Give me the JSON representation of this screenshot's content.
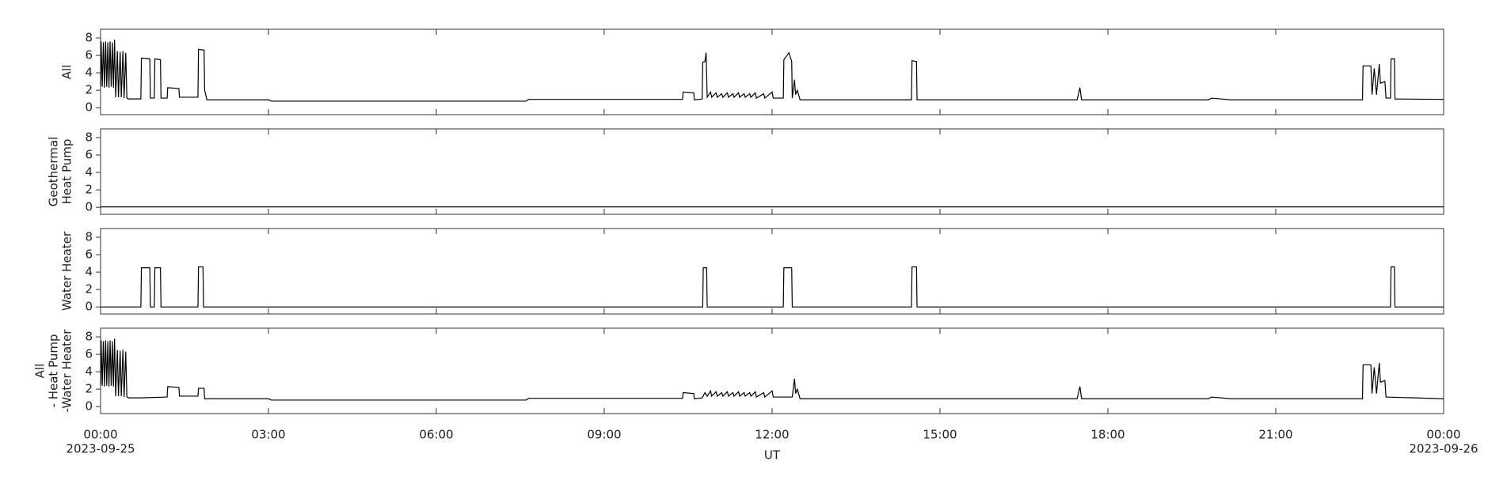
{
  "chart_data": [
    {
      "type": "line",
      "ylabel": [
        "All"
      ],
      "color": "#000000",
      "xlim": [
        0,
        24
      ],
      "ylim": [
        -0.8,
        9
      ],
      "yticks": [
        0,
        2,
        4,
        6,
        8
      ],
      "x": [
        0,
        0.01,
        0.03,
        0.05,
        0.07,
        0.09,
        0.11,
        0.13,
        0.15,
        0.17,
        0.19,
        0.21,
        0.23,
        0.25,
        0.27,
        0.3,
        0.32,
        0.35,
        0.37,
        0.4,
        0.42,
        0.45,
        0.47,
        0.5,
        0.72,
        0.73,
        0.88,
        0.89,
        0.96,
        0.97,
        1.07,
        1.08,
        1.19,
        1.2,
        1.4,
        1.41,
        1.74,
        1.75,
        1.85,
        1.86,
        1.9,
        3.0,
        3.05,
        7.6,
        7.65,
        10.4,
        10.41,
        10.6,
        10.61,
        10.75,
        10.76,
        10.8,
        10.82,
        10.84,
        10.9,
        10.92,
        11.0,
        11.02,
        11.1,
        11.12,
        11.2,
        11.22,
        11.3,
        11.32,
        11.4,
        11.42,
        11.5,
        11.52,
        11.6,
        11.62,
        11.7,
        11.72,
        11.85,
        11.87,
        12.0,
        12.02,
        12.2,
        12.21,
        12.3,
        12.35,
        12.36,
        12.4,
        12.42,
        12.45,
        12.5,
        14.49,
        14.5,
        14.58,
        14.59,
        17.45,
        17.5,
        17.53,
        19.8,
        19.85,
        20.2,
        22.55,
        22.56,
        22.7,
        22.72,
        22.76,
        22.8,
        22.85,
        22.87,
        22.95,
        22.97,
        23.05,
        23.06,
        23.12,
        23.13,
        24
      ],
      "values": [
        2.5,
        7.6,
        2.4,
        7.5,
        2.3,
        7.6,
        2.4,
        7.5,
        2.3,
        7.6,
        2.4,
        7.5,
        2.3,
        7.8,
        1.2,
        6.5,
        1.2,
        6.4,
        1.2,
        6.5,
        1.1,
        6.3,
        1.1,
        1.0,
        1.0,
        5.7,
        5.6,
        1.1,
        1.1,
        5.6,
        5.5,
        1.1,
        1.1,
        2.3,
        2.2,
        1.2,
        1.2,
        6.7,
        6.6,
        2.0,
        0.9,
        0.9,
        0.75,
        0.75,
        0.95,
        0.95,
        1.8,
        1.7,
        0.9,
        1.0,
        5.2,
        5.3,
        6.3,
        1.2,
        1.8,
        1.2,
        1.7,
        1.2,
        1.6,
        1.2,
        1.7,
        1.2,
        1.6,
        1.2,
        1.7,
        1.2,
        1.6,
        1.2,
        1.6,
        1.2,
        1.7,
        1.1,
        1.6,
        1.1,
        1.8,
        1.1,
        1.1,
        5.5,
        6.3,
        5.3,
        1.1,
        3.2,
        1.5,
        2.0,
        0.9,
        0.9,
        5.4,
        5.3,
        0.9,
        0.9,
        2.3,
        0.9,
        0.9,
        1.1,
        0.9,
        0.9,
        4.8,
        4.8,
        1.5,
        4.5,
        1.5,
        5.0,
        2.8,
        3.0,
        1.1,
        1.1,
        5.6,
        5.6,
        1.0,
        0.95
      ]
    },
    {
      "type": "line",
      "ylabel": [
        "Geothermal",
        "Heat Pump"
      ],
      "color": "#000000",
      "xlim": [
        0,
        24
      ],
      "ylim": [
        -0.8,
        9
      ],
      "yticks": [
        0,
        2,
        4,
        6,
        8
      ],
      "x": [
        0,
        24
      ],
      "values": [
        0.05,
        0.05
      ]
    },
    {
      "type": "line",
      "ylabel": [
        "Water Heater"
      ],
      "color": "#000000",
      "xlim": [
        0,
        24
      ],
      "ylim": [
        -0.8,
        9
      ],
      "yticks": [
        0,
        2,
        4,
        6,
        8
      ],
      "x": [
        0,
        0.72,
        0.73,
        0.88,
        0.89,
        0.96,
        0.97,
        1.07,
        1.08,
        1.74,
        1.75,
        1.83,
        1.84,
        10.76,
        10.77,
        10.83,
        10.84,
        12.2,
        12.21,
        12.35,
        12.36,
        14.49,
        14.5,
        14.58,
        14.59,
        23.05,
        23.06,
        23.12,
        23.13,
        24
      ],
      "values": [
        0,
        0,
        4.5,
        4.5,
        0,
        0,
        4.5,
        4.5,
        0,
        0,
        4.6,
        4.6,
        0,
        0,
        4.5,
        4.5,
        0,
        0,
        4.5,
        4.5,
        0,
        0,
        4.6,
        4.6,
        0,
        0,
        4.6,
        4.6,
        0,
        0
      ]
    },
    {
      "type": "line",
      "ylabel": [
        "All",
        "- Heat Pump",
        "-Water Heater"
      ],
      "color": "#000000",
      "xlim": [
        0,
        24
      ],
      "ylim": [
        -0.8,
        9
      ],
      "yticks": [
        0,
        2,
        4,
        6,
        8
      ],
      "xlabel": "UT",
      "xticks": [
        {
          "value": 0,
          "label": "00:00"
        },
        {
          "value": 3,
          "label": "03:00"
        },
        {
          "value": 6,
          "label": "06:00"
        },
        {
          "value": 9,
          "label": "09:00"
        },
        {
          "value": 12,
          "label": "12:00"
        },
        {
          "value": 15,
          "label": "15:00"
        },
        {
          "value": 18,
          "label": "18:00"
        },
        {
          "value": 21,
          "label": "21:00"
        },
        {
          "value": 24,
          "label": "00:00"
        }
      ],
      "x_dates": [
        {
          "value": 0,
          "label": "2023-09-25"
        },
        {
          "value": 24,
          "label": "2023-09-26"
        }
      ],
      "x": [
        0,
        0.01,
        0.03,
        0.05,
        0.07,
        0.09,
        0.11,
        0.13,
        0.15,
        0.17,
        0.19,
        0.21,
        0.23,
        0.25,
        0.27,
        0.3,
        0.32,
        0.35,
        0.37,
        0.4,
        0.42,
        0.45,
        0.47,
        0.5,
        0.72,
        1.19,
        1.2,
        1.4,
        1.41,
        1.74,
        1.75,
        1.85,
        1.86,
        3.0,
        3.05,
        7.6,
        7.65,
        10.4,
        10.41,
        10.6,
        10.61,
        10.75,
        10.8,
        10.84,
        10.9,
        10.92,
        11.0,
        11.02,
        11.1,
        11.12,
        11.2,
        11.22,
        11.3,
        11.32,
        11.4,
        11.42,
        11.5,
        11.52,
        11.6,
        11.62,
        11.7,
        11.72,
        11.85,
        11.87,
        12.0,
        12.02,
        12.36,
        12.4,
        12.42,
        12.45,
        12.5,
        17.45,
        17.5,
        17.53,
        19.8,
        19.85,
        20.2,
        22.55,
        22.56,
        22.7,
        22.72,
        22.76,
        22.8,
        22.85,
        22.87,
        22.95,
        22.97,
        24
      ],
      "values": [
        2.5,
        7.6,
        2.4,
        7.5,
        2.3,
        7.6,
        2.4,
        7.5,
        2.3,
        7.6,
        2.4,
        7.5,
        2.3,
        7.8,
        1.2,
        6.5,
        1.2,
        6.4,
        1.2,
        6.5,
        1.1,
        6.3,
        1.1,
        1.0,
        1.0,
        1.1,
        2.3,
        2.2,
        1.2,
        1.2,
        2.1,
        2.1,
        0.9,
        0.9,
        0.75,
        0.75,
        0.95,
        0.95,
        1.6,
        1.5,
        0.9,
        1.0,
        1.6,
        1.2,
        1.8,
        1.2,
        1.7,
        1.2,
        1.6,
        1.2,
        1.7,
        1.2,
        1.6,
        1.2,
        1.7,
        1.2,
        1.6,
        1.2,
        1.6,
        1.2,
        1.7,
        1.1,
        1.6,
        1.1,
        1.8,
        1.1,
        1.1,
        3.2,
        1.5,
        2.0,
        0.9,
        0.9,
        2.3,
        0.9,
        0.9,
        1.1,
        0.9,
        0.9,
        4.8,
        4.8,
        1.5,
        4.5,
        1.5,
        5.0,
        2.8,
        3.0,
        1.1,
        0.9
      ]
    }
  ]
}
